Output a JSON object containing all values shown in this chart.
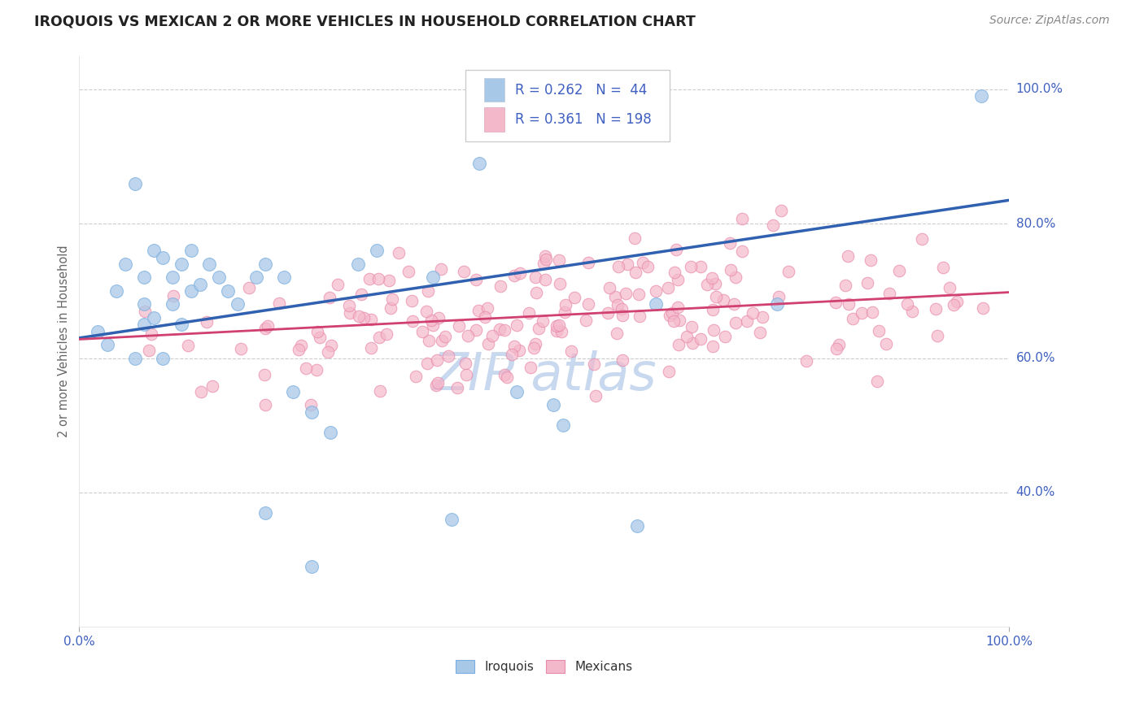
{
  "title": "IROQUOIS VS MEXICAN 2 OR MORE VEHICLES IN HOUSEHOLD CORRELATION CHART",
  "source_text": "Source: ZipAtlas.com",
  "ylabel": "2 or more Vehicles in Household",
  "blue_color": "#a8c8e8",
  "blue_edge_color": "#7aafe0",
  "pink_color": "#f4b8cb",
  "pink_edge_color": "#e88aaa",
  "blue_line_color": "#3060b0",
  "pink_line_color": "#d04070",
  "text_color": "#4060c0",
  "title_color": "#222222",
  "grid_color": "#cccccc",
  "background_color": "#ffffff",
  "watermark_color": "#c8d8ee",
  "legend_r1": "R = 0.262",
  "legend_n1": "N =  44",
  "legend_r2": "R = 0.361",
  "legend_n2": "N = 198",
  "blue_line_x0": 0.0,
  "blue_line_y0": 0.63,
  "blue_line_x1": 1.0,
  "blue_line_y1": 0.835,
  "pink_line_x0": 0.0,
  "pink_line_y0": 0.628,
  "pink_line_x1": 1.0,
  "pink_line_y1": 0.698,
  "xlim_lo": 0.0,
  "xlim_hi": 1.0,
  "ylim_lo": 0.2,
  "ylim_hi": 1.05,
  "yticks": [
    0.4,
    0.6,
    0.8,
    1.0
  ],
  "ytick_labels": [
    "40.0%",
    "60.0%",
    "80.0%",
    "100.0%"
  ],
  "xticks": [
    0.0,
    1.0
  ],
  "xtick_labels": [
    "0.0%",
    "100.0%"
  ]
}
